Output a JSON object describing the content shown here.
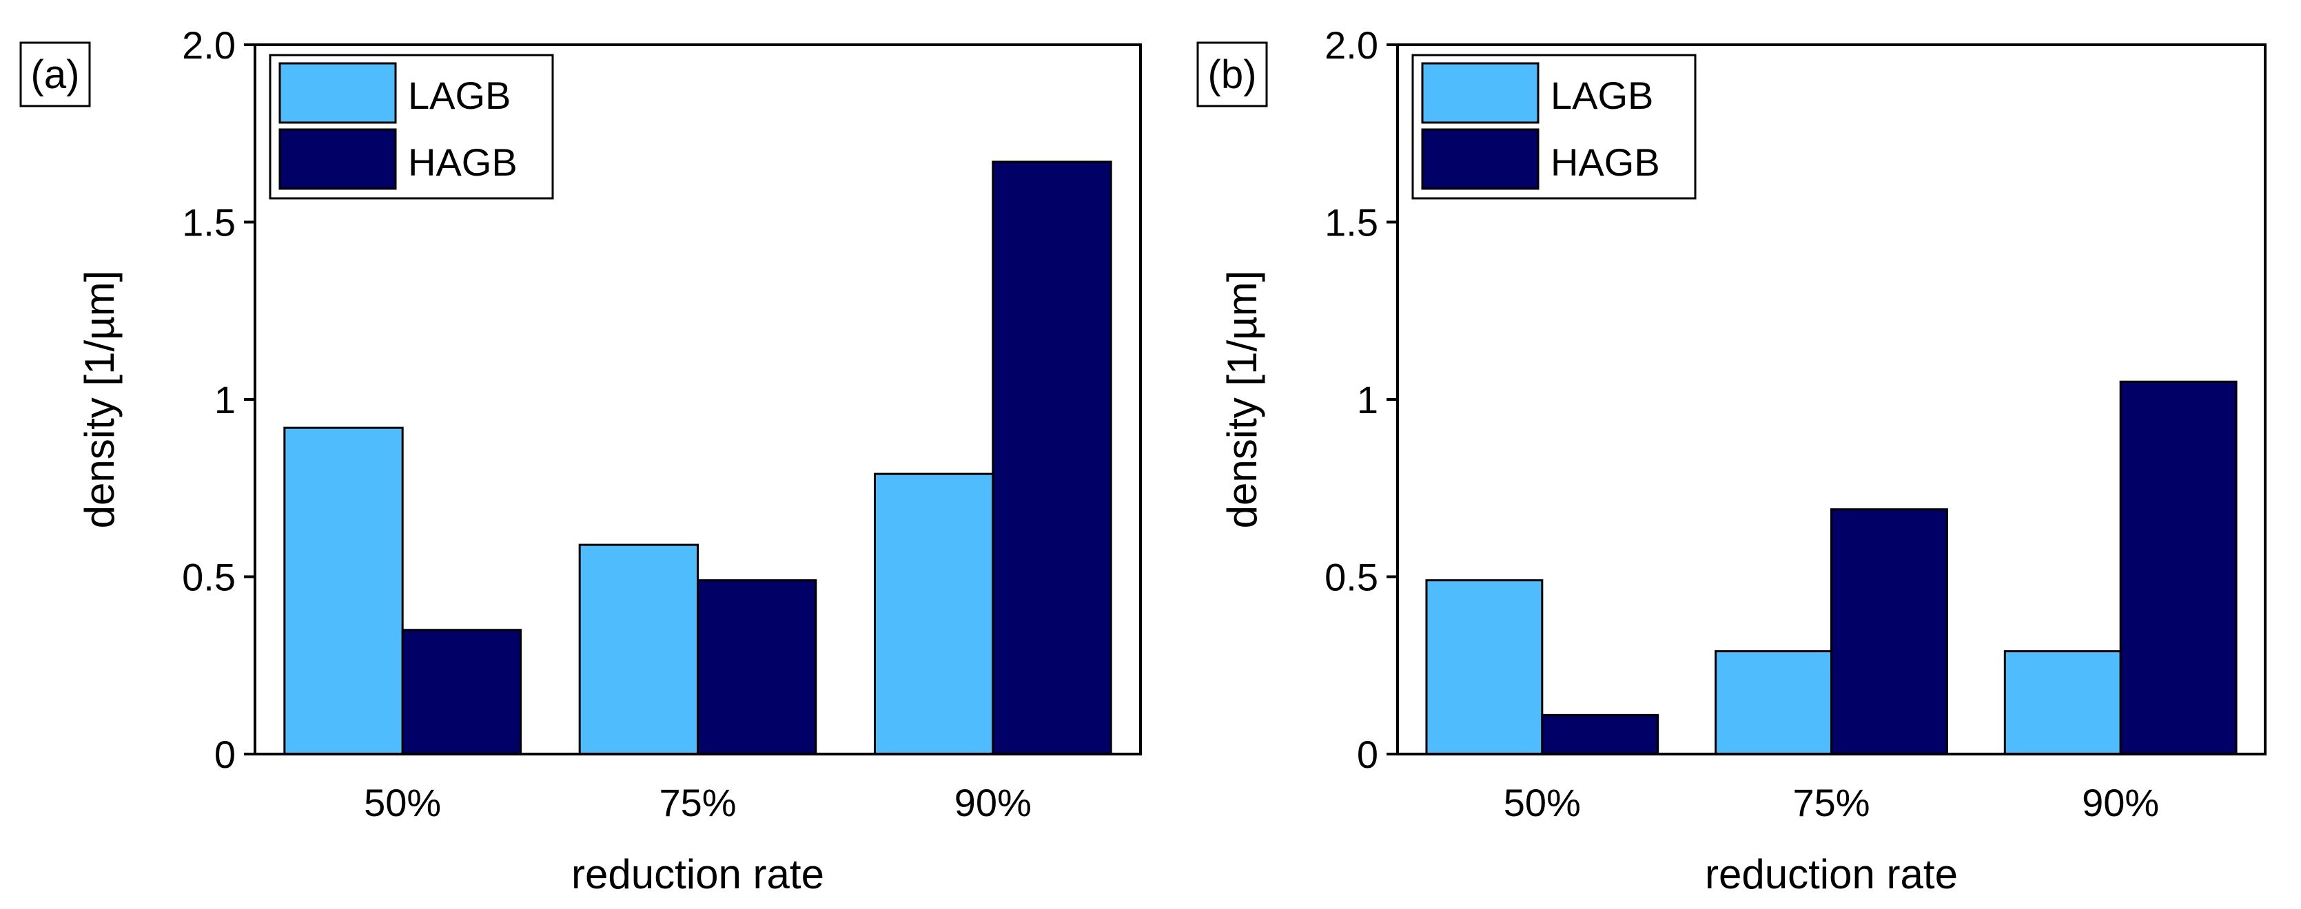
{
  "colors": {
    "LAGB": "#4fbcfd",
    "HAGB": "#000066",
    "frame": "#000000",
    "background": "#ffffff"
  },
  "chart_data": [
    {
      "type": "bar",
      "panel_label": "(a)",
      "categories": [
        "50%",
        "75%",
        "90%"
      ],
      "series": [
        {
          "name": "LAGB",
          "values": [
            0.92,
            0.59,
            0.79
          ]
        },
        {
          "name": "HAGB",
          "values": [
            0.35,
            0.49,
            1.67
          ]
        }
      ],
      "xlabel": "reduction rate",
      "ylabel": "density [1/µm]",
      "ylim": [
        0,
        2.0
      ],
      "yticks": [
        0,
        0.5,
        1,
        1.5,
        2.0
      ],
      "ytick_labels": [
        "0",
        "0.5",
        "1",
        "1.5",
        "2.0"
      ],
      "grid": false,
      "legend_position": "top-left"
    },
    {
      "type": "bar",
      "panel_label": "(b)",
      "categories": [
        "50%",
        "75%",
        "90%"
      ],
      "series": [
        {
          "name": "LAGB",
          "values": [
            0.49,
            0.29,
            0.29
          ]
        },
        {
          "name": "HAGB",
          "values": [
            0.11,
            0.69,
            1.05
          ]
        }
      ],
      "xlabel": "reduction rate",
      "ylabel": "density [1/µm]",
      "ylim": [
        0,
        2.0
      ],
      "yticks": [
        0,
        0.5,
        1,
        1.5,
        2.0
      ],
      "ytick_labels": [
        "0",
        "0.5",
        "1",
        "1.5",
        "2.0"
      ],
      "grid": false,
      "legend_position": "top-left"
    }
  ]
}
